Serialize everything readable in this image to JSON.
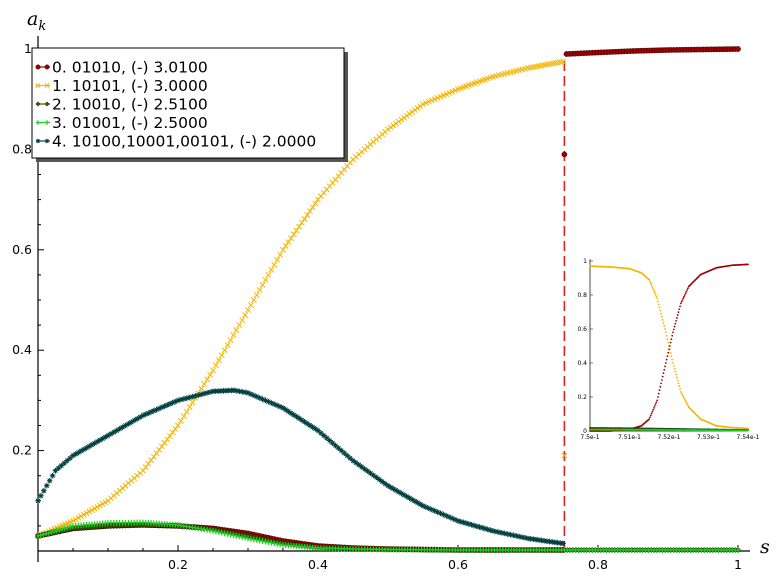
{
  "chart_data": [
    {
      "type": "line",
      "xlabel": "s",
      "ylabel": "a_k",
      "xlim": [
        0,
        1
      ],
      "ylim": [
        0,
        1
      ],
      "x_ticks": [
        "0.2",
        "0.4",
        "0.6",
        "0.8",
        "1"
      ],
      "y_ticks": [
        "0.2",
        "0.4",
        "0.6",
        "0.8",
        "1"
      ],
      "legend_position": "top-left",
      "marker_vline": {
        "x": 0.752,
        "color": "#dd2222",
        "style": "dashed"
      },
      "series": [
        {
          "name": "0. 01010, (-) 3.0100",
          "color": "#a00000",
          "marker": "circle",
          "x": [
            0,
            0.05,
            0.1,
            0.15,
            0.2,
            0.25,
            0.3,
            0.35,
            0.4,
            0.45,
            0.5,
            0.55,
            0.6,
            0.65,
            0.7,
            0.75,
            0.752,
            0.755,
            0.8,
            0.85,
            0.9,
            0.95,
            1.0
          ],
          "y": [
            0.03,
            0.045,
            0.05,
            0.052,
            0.05,
            0.045,
            0.035,
            0.02,
            0.01,
            0.006,
            0.004,
            0.003,
            0.002,
            0.002,
            0.002,
            0.002,
            0.79,
            0.99,
            0.993,
            0.996,
            0.998,
            0.999,
            1.0
          ]
        },
        {
          "name": "1. 10101, (-) 3.0000",
          "color": "#f4b400",
          "marker": "x",
          "x": [
            0,
            0.05,
            0.1,
            0.15,
            0.2,
            0.25,
            0.3,
            0.35,
            0.4,
            0.45,
            0.5,
            0.55,
            0.6,
            0.65,
            0.7,
            0.75,
            0.752
          ],
          "y": [
            0.03,
            0.06,
            0.1,
            0.16,
            0.25,
            0.36,
            0.48,
            0.6,
            0.7,
            0.78,
            0.84,
            0.89,
            0.92,
            0.945,
            0.962,
            0.975,
            0.19
          ]
        },
        {
          "name": "2. 10010, (-) 2.5100",
          "color": "#3a5a00",
          "marker": "diamond",
          "x": [
            0,
            0.05,
            0.1,
            0.15,
            0.2,
            0.25,
            0.3,
            0.35,
            0.4,
            0.45,
            0.5,
            0.6,
            0.7,
            0.8,
            0.9,
            1.0
          ],
          "y": [
            0.03,
            0.045,
            0.05,
            0.052,
            0.05,
            0.043,
            0.03,
            0.015,
            0.007,
            0.004,
            0.003,
            0.002,
            0.002,
            0.002,
            0.002,
            0.002
          ]
        },
        {
          "name": "3. 01001, (-) 2.5000",
          "color": "#22cc22",
          "marker": "plus",
          "x": [
            0,
            0.05,
            0.1,
            0.15,
            0.2,
            0.25,
            0.3,
            0.35,
            0.4,
            0.45,
            0.5,
            0.6,
            0.7,
            0.8,
            0.9,
            1.0
          ],
          "y": [
            0.03,
            0.05,
            0.056,
            0.057,
            0.052,
            0.04,
            0.025,
            0.012,
            0.006,
            0.004,
            0.003,
            0.002,
            0.002,
            0.002,
            0.002,
            0.002
          ]
        },
        {
          "name": "4. 10100,10001,00101, (-) 2.0000",
          "color": "#004040",
          "marker": "star",
          "x": [
            0,
            0.025,
            0.05,
            0.1,
            0.15,
            0.2,
            0.25,
            0.28,
            0.3,
            0.35,
            0.4,
            0.45,
            0.5,
            0.55,
            0.6,
            0.65,
            0.7,
            0.75
          ],
          "y": [
            0.1,
            0.16,
            0.19,
            0.23,
            0.27,
            0.3,
            0.318,
            0.32,
            0.315,
            0.285,
            0.24,
            0.18,
            0.13,
            0.09,
            0.06,
            0.04,
            0.025,
            0.015
          ]
        }
      ]
    },
    {
      "type": "line",
      "title": "",
      "xlim": [
        0.75,
        0.754
      ],
      "ylim": [
        0,
        1
      ],
      "x_ticks": [
        "7.5e-1",
        "7.51e-1",
        "7.52e-1",
        "7.53e-1",
        "7.54e-1"
      ],
      "y_ticks": [
        "0",
        "0.2",
        "0.4",
        "0.6",
        "0.8",
        "1"
      ],
      "series": [
        {
          "name": "0",
          "color": "#a00000",
          "x": [
            0.75,
            0.7505,
            0.751,
            0.7513,
            0.7515,
            0.7517,
            0.7519,
            0.7521,
            0.7523,
            0.7525,
            0.7528,
            0.7532,
            0.7536,
            0.754
          ],
          "y": [
            0.0,
            0.0,
            0.01,
            0.03,
            0.07,
            0.18,
            0.38,
            0.58,
            0.75,
            0.85,
            0.92,
            0.96,
            0.975,
            0.98
          ]
        },
        {
          "name": "1",
          "color": "#f4b400",
          "x": [
            0.75,
            0.7505,
            0.751,
            0.7513,
            0.7515,
            0.7517,
            0.7519,
            0.7521,
            0.7523,
            0.7525,
            0.7528,
            0.7532,
            0.7536,
            0.754
          ],
          "y": [
            0.97,
            0.965,
            0.955,
            0.93,
            0.89,
            0.78,
            0.6,
            0.4,
            0.23,
            0.14,
            0.07,
            0.03,
            0.02,
            0.015
          ]
        },
        {
          "name": "2",
          "color": "#3a5a00",
          "x": [
            0.75,
            0.751,
            0.752,
            0.753,
            0.754
          ],
          "y": [
            0.015,
            0.012,
            0.01,
            0.006,
            0.004
          ]
        },
        {
          "name": "3",
          "color": "#22cc22",
          "x": [
            0.75,
            0.751,
            0.752,
            0.753,
            0.754
          ],
          "y": [
            0.008,
            0.007,
            0.006,
            0.004,
            0.003
          ]
        },
        {
          "name": "4",
          "color": "#004040",
          "x": [
            0.75,
            0.751,
            0.752,
            0.753,
            0.754
          ],
          "y": [
            0.018,
            0.016,
            0.013,
            0.009,
            0.006
          ]
        }
      ]
    }
  ]
}
